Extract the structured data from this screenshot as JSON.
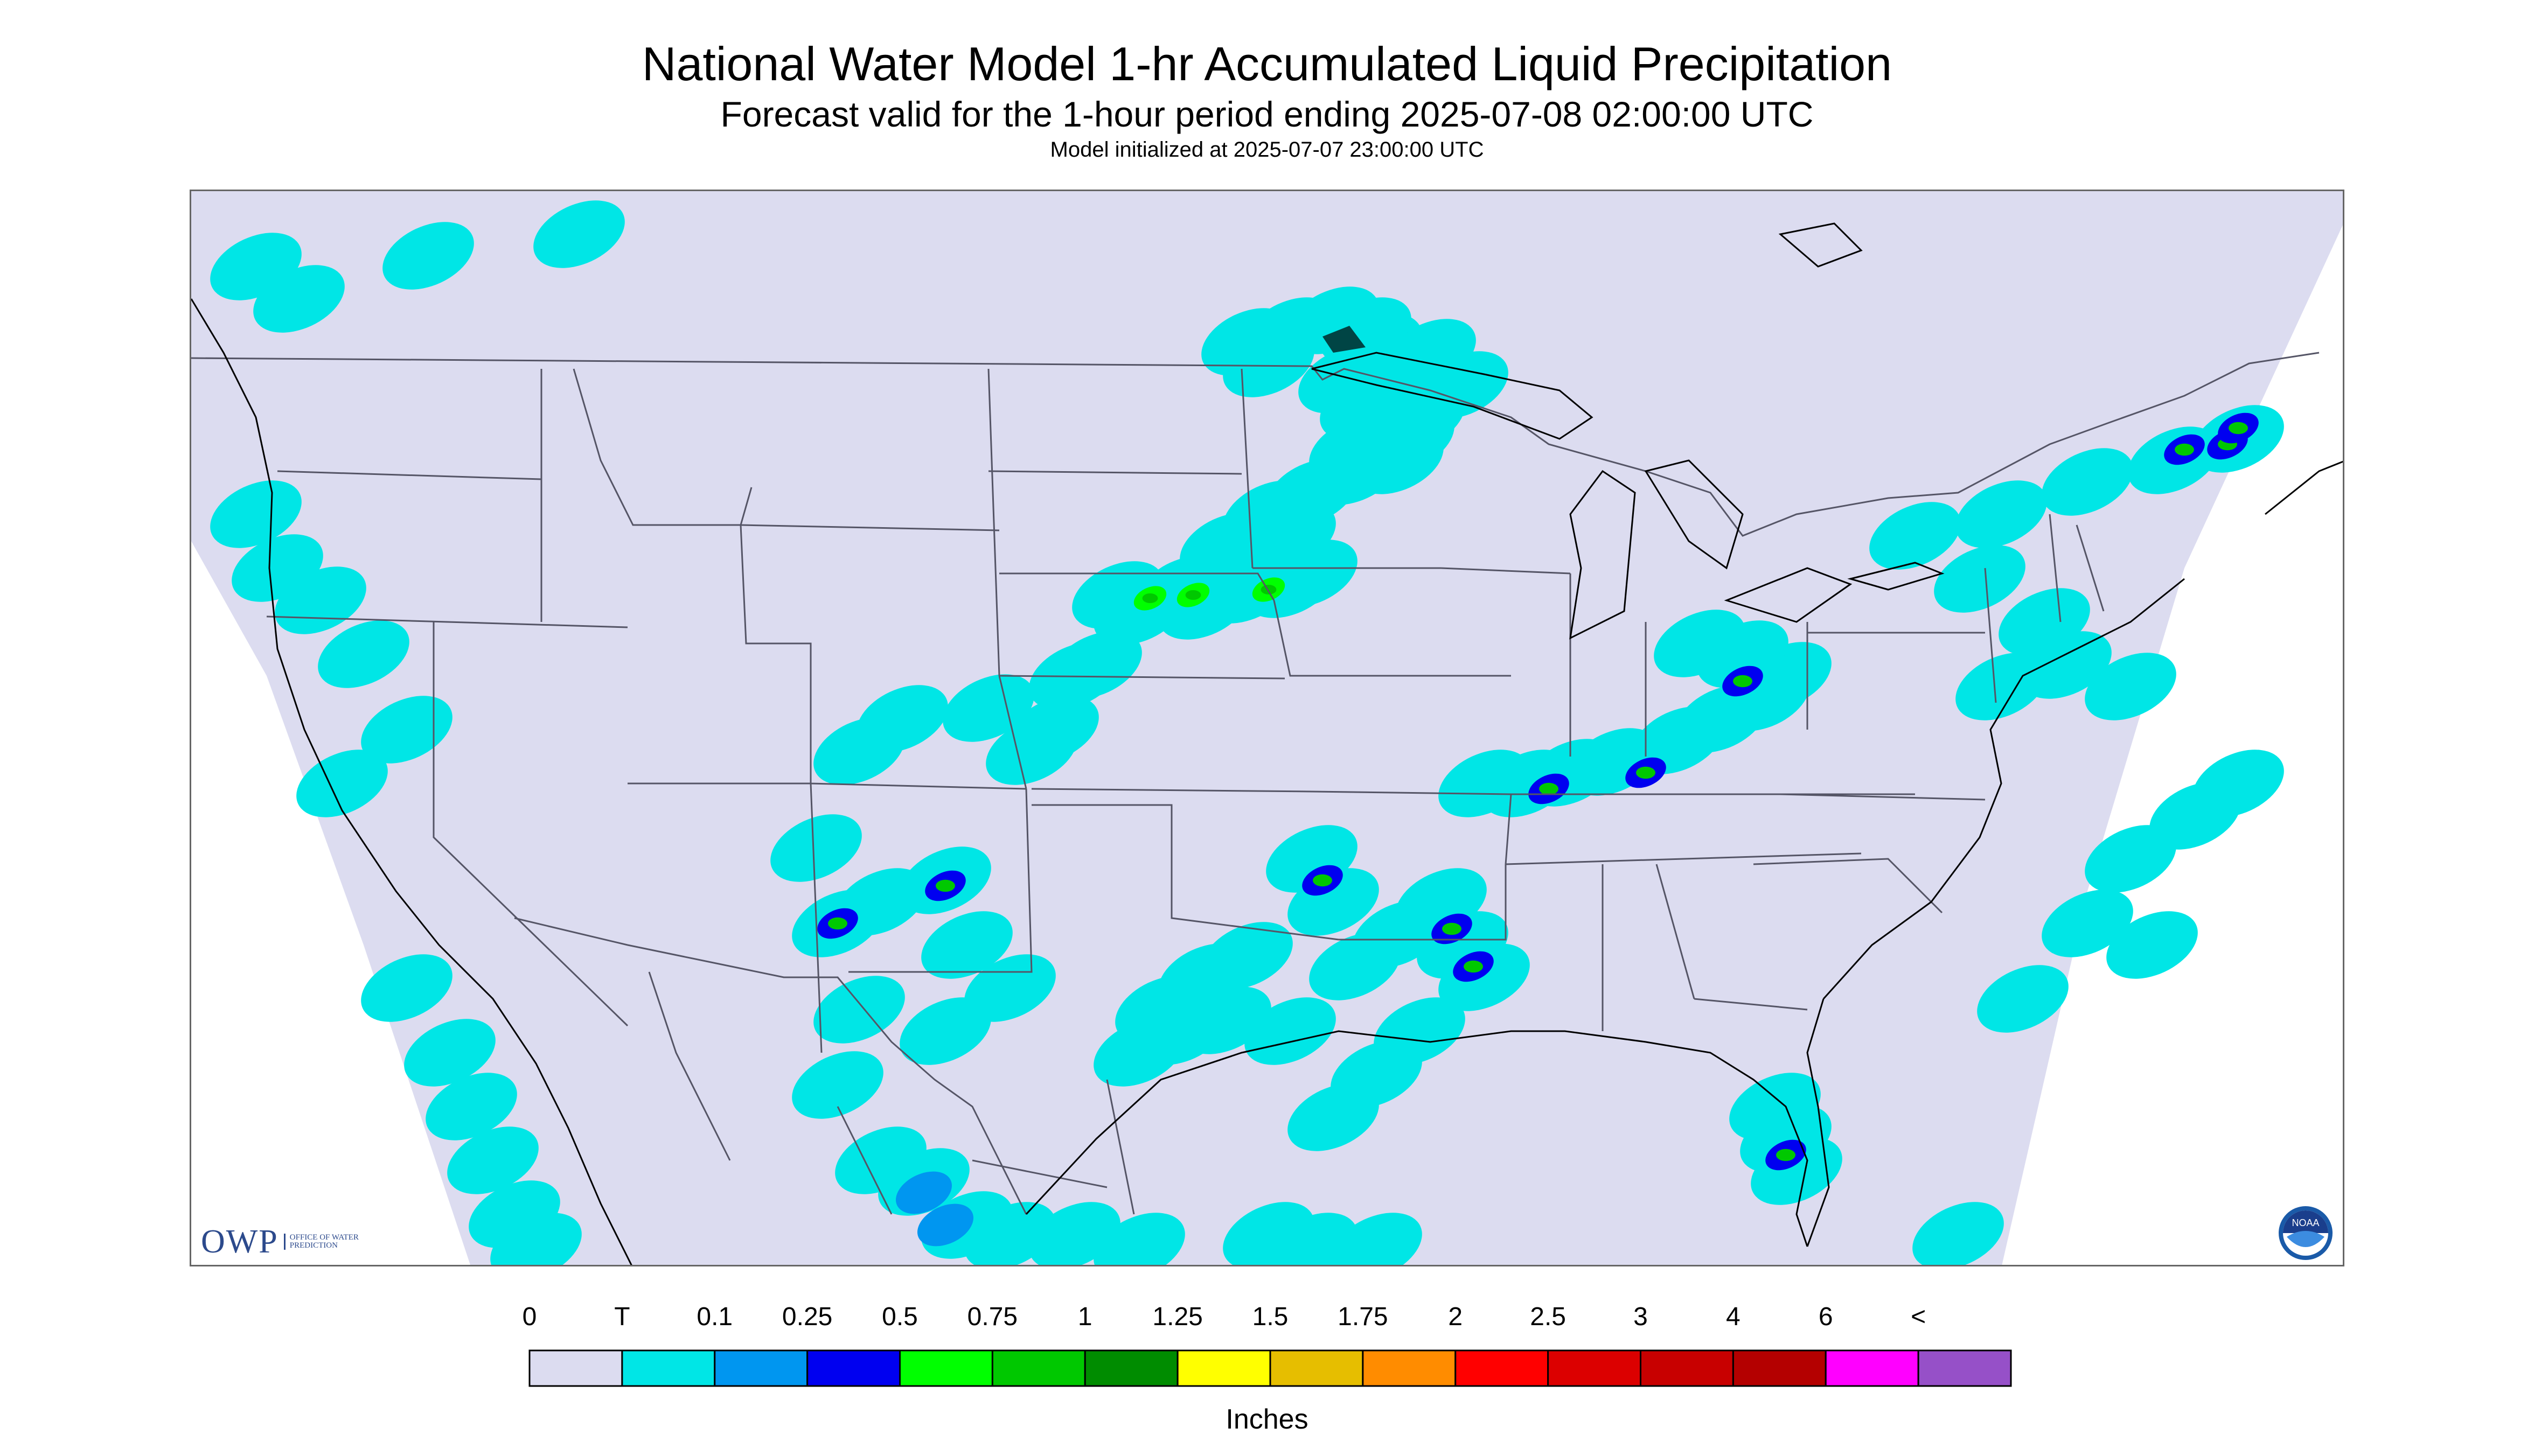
{
  "header": {
    "title": "National Water Model 1-hr Accumulated Liquid Precipitation",
    "subtitle": "Forecast valid for the 1-hour period ending 2025-07-08 02:00:00 UTC",
    "init_line": "Model initialized at 2025-07-07 23:00:00 UTC"
  },
  "colors": {
    "map_background": "#dcdcf0",
    "outside_domain": "#ffffff",
    "boundary_lines": "#555566",
    "coastline": "#000000"
  },
  "logos": {
    "owp_text": "OWP",
    "owp_subtext": "OFFICE OF WATER PREDICTION",
    "noaa_text": "NOAA"
  },
  "legend": {
    "units": "Inches",
    "labels": [
      "0",
      "T",
      "0.1",
      "0.25",
      "0.5",
      "0.75",
      "1",
      "1.25",
      "1.5",
      "1.75",
      "2",
      "2.5",
      "3",
      "4",
      "6",
      "<"
    ],
    "bins": [
      {
        "color": "#dcdcf0"
      },
      {
        "color": "#00e6e6"
      },
      {
        "color": "#0096f0"
      },
      {
        "color": "#0000f0"
      },
      {
        "color": "#00ff00"
      },
      {
        "color": "#00c800"
      },
      {
        "color": "#008c00"
      },
      {
        "color": "#ffff00"
      },
      {
        "color": "#e6be00"
      },
      {
        "color": "#ff8c00"
      },
      {
        "color": "#ff0000"
      },
      {
        "color": "#dc0000"
      },
      {
        "color": "#c80000"
      },
      {
        "color": "#b40000"
      },
      {
        "color": "#ff00ff"
      },
      {
        "color": "#9650c8"
      }
    ]
  },
  "precip_areas": [
    {
      "name": "northern-minnesota",
      "level": 1,
      "cells": [
        [
          0.535,
          0.175
        ],
        [
          0.56,
          0.17
        ],
        [
          0.57,
          0.21
        ],
        [
          0.565,
          0.23
        ],
        [
          0.54,
          0.24
        ],
        [
          0.545,
          0.2
        ],
        [
          0.49,
          0.14
        ],
        [
          0.51,
          0.13
        ],
        [
          0.5,
          0.16
        ]
      ]
    },
    {
      "name": "lake-superior-north",
      "level": 1,
      "cells": [
        [
          0.55,
          0.145
        ],
        [
          0.575,
          0.15
        ],
        [
          0.59,
          0.18
        ],
        [
          0.53,
          0.12
        ],
        [
          0.545,
          0.13
        ]
      ]
    },
    {
      "name": "minnesota-wisconsin-line",
      "level": 1,
      "cells": [
        [
          0.5,
          0.3
        ],
        [
          0.52,
          0.28
        ],
        [
          0.54,
          0.26
        ],
        [
          0.56,
          0.25
        ],
        [
          0.51,
          0.32
        ],
        [
          0.48,
          0.33
        ]
      ]
    },
    {
      "name": "nebraska-iowa-band",
      "level": 1,
      "cells": [
        [
          0.43,
          0.375
        ],
        [
          0.46,
          0.37
        ],
        [
          0.49,
          0.37
        ],
        [
          0.51,
          0.365
        ],
        [
          0.52,
          0.355
        ],
        [
          0.47,
          0.385
        ],
        [
          0.44,
          0.39
        ]
      ]
    },
    {
      "name": "nebraska-iowa-core",
      "level": 4,
      "cells": [
        [
          0.465,
          0.375
        ],
        [
          0.5,
          0.37
        ],
        [
          0.445,
          0.378
        ]
      ]
    },
    {
      "name": "kansas-cells",
      "level": 1,
      "cells": [
        [
          0.39,
          0.52
        ],
        [
          0.4,
          0.5
        ],
        [
          0.41,
          0.45
        ],
        [
          0.42,
          0.44
        ],
        [
          0.37,
          0.48
        ],
        [
          0.33,
          0.49
        ],
        [
          0.31,
          0.52
        ]
      ]
    },
    {
      "name": "ohio-valley-band",
      "level": 1,
      "cells": [
        [
          0.6,
          0.55
        ],
        [
          0.62,
          0.55
        ],
        [
          0.64,
          0.54
        ],
        [
          0.66,
          0.53
        ],
        [
          0.69,
          0.51
        ],
        [
          0.71,
          0.49
        ],
        [
          0.73,
          0.47
        ],
        [
          0.74,
          0.45
        ],
        [
          0.72,
          0.43
        ],
        [
          0.7,
          0.42
        ]
      ]
    },
    {
      "name": "ohio-valley-core",
      "level": 3,
      "cells": [
        [
          0.63,
          0.555
        ],
        [
          0.72,
          0.455
        ],
        [
          0.675,
          0.54
        ]
      ]
    },
    {
      "name": "mississippi-cells",
      "level": 1,
      "cells": [
        [
          0.58,
          0.66
        ],
        [
          0.59,
          0.7
        ],
        [
          0.6,
          0.73
        ],
        [
          0.56,
          0.69
        ],
        [
          0.54,
          0.72
        ],
        [
          0.53,
          0.66
        ],
        [
          0.52,
          0.62
        ]
      ]
    },
    {
      "name": "mississippi-core",
      "level": 3,
      "cells": [
        [
          0.585,
          0.685
        ],
        [
          0.595,
          0.72
        ],
        [
          0.525,
          0.64
        ]
      ]
    },
    {
      "name": "texas-cells",
      "level": 1,
      "cells": [
        [
          0.45,
          0.76
        ],
        [
          0.47,
          0.73
        ],
        [
          0.49,
          0.71
        ],
        [
          0.44,
          0.8
        ],
        [
          0.46,
          0.78
        ],
        [
          0.48,
          0.77
        ]
      ]
    },
    {
      "name": "new-mexico-cells",
      "level": 1,
      "cells": [
        [
          0.32,
          0.66
        ],
        [
          0.35,
          0.64
        ],
        [
          0.36,
          0.7
        ],
        [
          0.38,
          0.74
        ],
        [
          0.3,
          0.68
        ],
        [
          0.29,
          0.61
        ]
      ]
    },
    {
      "name": "new-mexico-core",
      "level": 3,
      "cells": [
        [
          0.35,
          0.645
        ],
        [
          0.3,
          0.68
        ]
      ]
    },
    {
      "name": "northern-mexico-cells",
      "level": 1,
      "cells": [
        [
          0.3,
          0.83
        ],
        [
          0.32,
          0.9
        ],
        [
          0.34,
          0.92
        ],
        [
          0.36,
          0.96
        ],
        [
          0.38,
          0.97
        ],
        [
          0.41,
          0.97
        ],
        [
          0.44,
          0.98
        ],
        [
          0.31,
          0.76
        ],
        [
          0.35,
          0.78
        ]
      ]
    },
    {
      "name": "mexico-core",
      "level": 2,
      "cells": [
        [
          0.35,
          0.96
        ],
        [
          0.34,
          0.93
        ]
      ]
    },
    {
      "name": "northeast-band",
      "level": 1,
      "cells": [
        [
          0.8,
          0.32
        ],
        [
          0.84,
          0.3
        ],
        [
          0.88,
          0.27
        ],
        [
          0.92,
          0.25
        ],
        [
          0.95,
          0.23
        ],
        [
          0.83,
          0.36
        ],
        [
          0.86,
          0.4
        ],
        [
          0.87,
          0.44
        ],
        [
          0.84,
          0.46
        ],
        [
          0.9,
          0.46
        ]
      ]
    },
    {
      "name": "northeast-core",
      "level": 3,
      "cells": [
        [
          0.945,
          0.235
        ],
        [
          0.925,
          0.24
        ],
        [
          0.95,
          0.22
        ]
      ]
    },
    {
      "name": "pacific-northwest",
      "level": 1,
      "cells": [
        [
          0.03,
          0.3
        ],
        [
          0.04,
          0.35
        ],
        [
          0.06,
          0.38
        ],
        [
          0.08,
          0.43
        ],
        [
          0.1,
          0.5
        ],
        [
          0.07,
          0.55
        ],
        [
          0.03,
          0.07
        ],
        [
          0.05,
          0.1
        ],
        [
          0.11,
          0.06
        ],
        [
          0.18,
          0.04
        ]
      ]
    },
    {
      "name": "southeast-atlantic",
      "level": 1,
      "cells": [
        [
          0.85,
          0.75
        ],
        [
          0.88,
          0.68
        ],
        [
          0.9,
          0.62
        ],
        [
          0.93,
          0.58
        ],
        [
          0.95,
          0.55
        ],
        [
          0.91,
          0.7
        ]
      ]
    },
    {
      "name": "florida",
      "level": 1,
      "cells": [
        [
          0.74,
          0.88
        ],
        [
          0.745,
          0.91
        ],
        [
          0.735,
          0.85
        ]
      ]
    },
    {
      "name": "florida-core",
      "level": 3,
      "cells": [
        [
          0.74,
          0.895
        ]
      ]
    },
    {
      "name": "gulf-cells",
      "level": 1,
      "cells": [
        [
          0.53,
          0.86
        ],
        [
          0.55,
          0.82
        ],
        [
          0.51,
          0.78
        ],
        [
          0.57,
          0.78
        ],
        [
          0.5,
          0.97
        ],
        [
          0.52,
          0.98
        ],
        [
          0.55,
          0.98
        ],
        [
          0.82,
          0.97
        ]
      ]
    },
    {
      "name": "baja-pacific",
      "level": 1,
      "cells": [
        [
          0.12,
          0.8
        ],
        [
          0.13,
          0.85
        ],
        [
          0.14,
          0.9
        ],
        [
          0.15,
          0.95
        ],
        [
          0.16,
          0.98
        ],
        [
          0.1,
          0.74
        ]
      ]
    }
  ]
}
